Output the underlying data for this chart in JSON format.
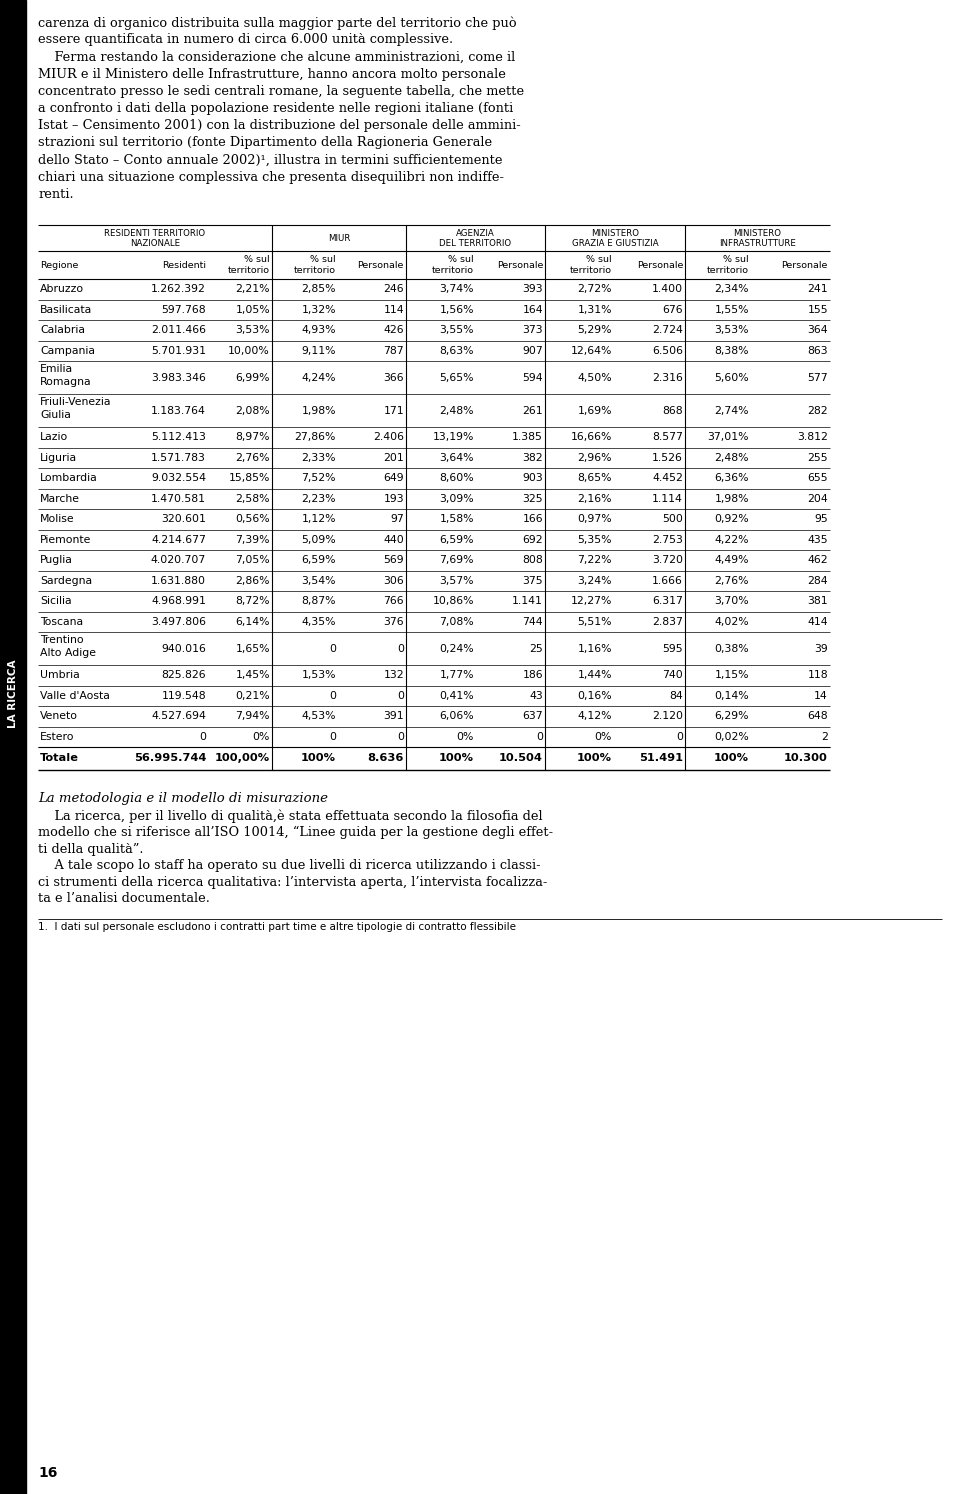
{
  "intro_text": [
    "carenza di organico distribuita sulla maggior parte del territorio che può",
    "essere quantificata in numero di circa 6.000 unità complessive.",
    "    Ferma restando la considerazione che alcune amministrazioni, come il",
    "MIUR e il Ministero delle Infrastrutture, hanno ancora molto personale",
    "concentrato presso le sedi centrali romane, la seguente tabella, che mette",
    "a confronto i dati della popolazione residente nelle regioni italiane (fonti",
    "Istat – Censimento 2001) con la distribuzione del personale delle ammini-",
    "strazioni sul territorio (fonte Dipartimento della Ragioneria Generale",
    "dello Stato – Conto annuale 2002)¹, illustra in termini sufficientemente",
    "chiari una situazione complessiva che presenta disequilibri non indiffe-",
    "renti."
  ],
  "sidebar_text": "LA RICERCA",
  "rows": [
    [
      "Abruzzo",
      "1.262.392",
      "2,21%",
      "2,85%",
      "246",
      "3,74%",
      "393",
      "2,72%",
      "1.400",
      "2,34%",
      "241"
    ],
    [
      "Basilicata",
      "597.768",
      "1,05%",
      "1,32%",
      "114",
      "1,56%",
      "164",
      "1,31%",
      "676",
      "1,55%",
      "155"
    ],
    [
      "Calabria",
      "2.011.466",
      "3,53%",
      "4,93%",
      "426",
      "3,55%",
      "373",
      "5,29%",
      "2.724",
      "3,53%",
      "364"
    ],
    [
      "Campania",
      "5.701.931",
      "10,00%",
      "9,11%",
      "787",
      "8,63%",
      "907",
      "12,64%",
      "6.506",
      "8,38%",
      "863"
    ],
    [
      "Emilia\nRomagna",
      "3.983.346",
      "6,99%",
      "4,24%",
      "366",
      "5,65%",
      "594",
      "4,50%",
      "2.316",
      "5,60%",
      "577"
    ],
    [
      "Friuli-Venezia\nGiulia",
      "1.183.764",
      "2,08%",
      "1,98%",
      "171",
      "2,48%",
      "261",
      "1,69%",
      "868",
      "2,74%",
      "282"
    ],
    [
      "Lazio",
      "5.112.413",
      "8,97%",
      "27,86%",
      "2.406",
      "13,19%",
      "1.385",
      "16,66%",
      "8.577",
      "37,01%",
      "3.812"
    ],
    [
      "Liguria",
      "1.571.783",
      "2,76%",
      "2,33%",
      "201",
      "3,64%",
      "382",
      "2,96%",
      "1.526",
      "2,48%",
      "255"
    ],
    [
      "Lombardia",
      "9.032.554",
      "15,85%",
      "7,52%",
      "649",
      "8,60%",
      "903",
      "8,65%",
      "4.452",
      "6,36%",
      "655"
    ],
    [
      "Marche",
      "1.470.581",
      "2,58%",
      "2,23%",
      "193",
      "3,09%",
      "325",
      "2,16%",
      "1.114",
      "1,98%",
      "204"
    ],
    [
      "Molise",
      "320.601",
      "0,56%",
      "1,12%",
      "97",
      "1,58%",
      "166",
      "0,97%",
      "500",
      "0,92%",
      "95"
    ],
    [
      "Piemonte",
      "4.214.677",
      "7,39%",
      "5,09%",
      "440",
      "6,59%",
      "692",
      "5,35%",
      "2.753",
      "4,22%",
      "435"
    ],
    [
      "Puglia",
      "4.020.707",
      "7,05%",
      "6,59%",
      "569",
      "7,69%",
      "808",
      "7,22%",
      "3.720",
      "4,49%",
      "462"
    ],
    [
      "Sardegna",
      "1.631.880",
      "2,86%",
      "3,54%",
      "306",
      "3,57%",
      "375",
      "3,24%",
      "1.666",
      "2,76%",
      "284"
    ],
    [
      "Sicilia",
      "4.968.991",
      "8,72%",
      "8,87%",
      "766",
      "10,86%",
      "1.141",
      "12,27%",
      "6.317",
      "3,70%",
      "381"
    ],
    [
      "Toscana",
      "3.497.806",
      "6,14%",
      "4,35%",
      "376",
      "7,08%",
      "744",
      "5,51%",
      "2.837",
      "4,02%",
      "414"
    ],
    [
      "Trentino\nAlto Adige",
      "940.016",
      "1,65%",
      "0",
      "0",
      "0,24%",
      "25",
      "1,16%",
      "595",
      "0,38%",
      "39"
    ],
    [
      "Umbria",
      "825.826",
      "1,45%",
      "1,53%",
      "132",
      "1,77%",
      "186",
      "1,44%",
      "740",
      "1,15%",
      "118"
    ],
    [
      "Valle d'Aosta",
      "119.548",
      "0,21%",
      "0",
      "0",
      "0,41%",
      "43",
      "0,16%",
      "84",
      "0,14%",
      "14"
    ],
    [
      "Veneto",
      "4.527.694",
      "7,94%",
      "4,53%",
      "391",
      "6,06%",
      "637",
      "4,12%",
      "2.120",
      "6,29%",
      "648"
    ],
    [
      "Estero",
      "0",
      "0%",
      "0",
      "0",
      "0%",
      "0",
      "0%",
      "0",
      "0,02%",
      "2"
    ]
  ],
  "totale_row": [
    "Totale",
    "56.995.744",
    "100,00%",
    "100%",
    "8.636",
    "100%",
    "10.504",
    "100%",
    "51.491",
    "100%",
    "10.300"
  ],
  "footer_title": "La metodologia e il modello di misurazione",
  "footer_text": [
    "    La ricerca, per il livello di qualità,è stata effettuata secondo la filosofia del",
    "modello che si riferisce all’ISO 10014, “Linee guida per la gestione degli effet-",
    "ti della qualità”.",
    "    A tale scopo lo staff ha operato su due livelli di ricerca utilizzando i classi-",
    "ci strumenti della ricerca qualitativa: l’intervista aperta, l’intervista focalizza-",
    "ta e l’analisi documentale."
  ],
  "footnote": "1.  I dati sul personale escludono i contratti part time e altre tipologie di contratto flessibile",
  "page_number": "16",
  "bg_color": "#ffffff",
  "text_color": "#000000",
  "sidebar_bg": "#000000",
  "sidebar_text_color": "#ffffff"
}
